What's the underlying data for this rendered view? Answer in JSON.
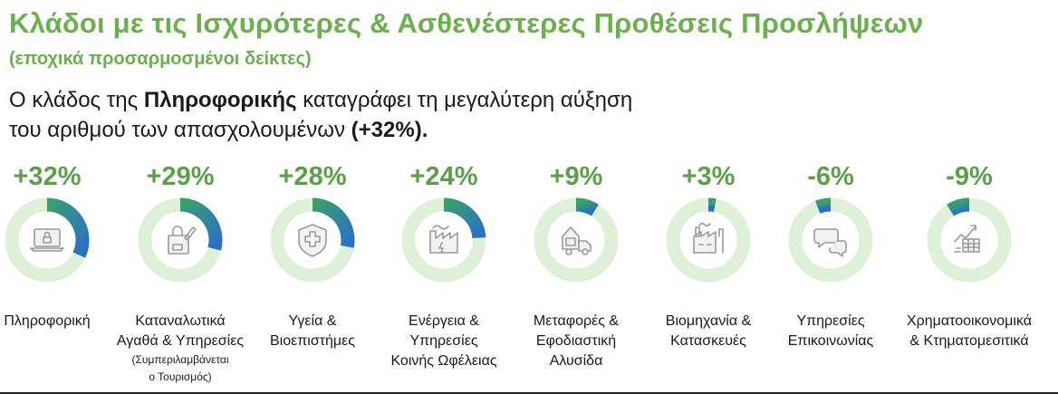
{
  "header": {
    "title": "Κλάδοι με τις Ισχυρότερες & Ασθενέστερες Προθέσεις Προσλήψεων",
    "subtitle": "(εποχικά προσαρμοσμένοι δείκτες)",
    "lead_pre": "Ο κλάδος της ",
    "lead_bold": "Πληροφορικής",
    "lead_mid": " καταγράφει τη μεγαλύτερη αύξηση",
    "lead_line2": "του αριθμού των απασχολουμένων ",
    "lead_bold2": "(+32%)."
  },
  "colors": {
    "accent_green": "#6ab04c",
    "value_green": "#5aa046",
    "ring_track": "#dff0d8",
    "arc_start": "#3aa06a",
    "arc_end": "#2a6fc9",
    "icon_gray": "#9a9a9a",
    "icon_fill": "#f2f2f2"
  },
  "chart_data": {
    "type": "donut",
    "unit": "%",
    "categories": [
      "Πληροφορική",
      "Καταναλωτικά Αγαθά & Υπηρεσίες",
      "Υγεία & Βιοεπιστήμες",
      "Ενέργεια & Υπηρεσίες Κοινής Ωφέλειας",
      "Μεταφορές & Εφοδιαστική Αλυσίδα",
      "Βιομηχανία & Κατασκευές",
      "Υπηρεσίες Επικοινωνίας",
      "Χρηματοοικονομικά & Κτηματομεσιτικά"
    ],
    "values": [
      32,
      29,
      28,
      24,
      9,
      3,
      -6,
      -9
    ],
    "value_labels": [
      "+32%",
      "+29%",
      "+28%",
      "+24%",
      "+9%",
      "+3%",
      "-6%",
      "-9%"
    ],
    "label_lines": [
      [
        "Πληροφορική"
      ],
      [
        "Καταναλωτικά",
        "Αγαθά & Υπηρεσίες"
      ],
      [
        "Υγεία &",
        "Βιοεπιστήμες"
      ],
      [
        "Ενέργεια &",
        "Υπηρεσίες",
        "Κοινής Ωφέλειας"
      ],
      [
        "Μεταφορές &",
        "Εφοδιαστική",
        "Αλυσίδα"
      ],
      [
        "Βιομηχανία &",
        "Κατασκευές"
      ],
      [
        "Υπηρεσίες",
        "Επικοινωνίας"
      ],
      [
        "Χρηματοοικονομικά",
        "& Κτηματομεσιτικά"
      ]
    ],
    "notes": [
      [],
      [
        "(Συμπεριλαμβάνεται",
        "ο Τουρισμός)"
      ],
      [],
      [],
      [],
      [],
      [],
      []
    ],
    "icons": [
      "laptop-lock-icon",
      "shopping-bag-icon",
      "medical-shield-icon",
      "energy-factory-icon",
      "delivery-truck-icon",
      "industry-factory-icon",
      "chat-bubbles-icon",
      "finance-chart-icon"
    ]
  }
}
